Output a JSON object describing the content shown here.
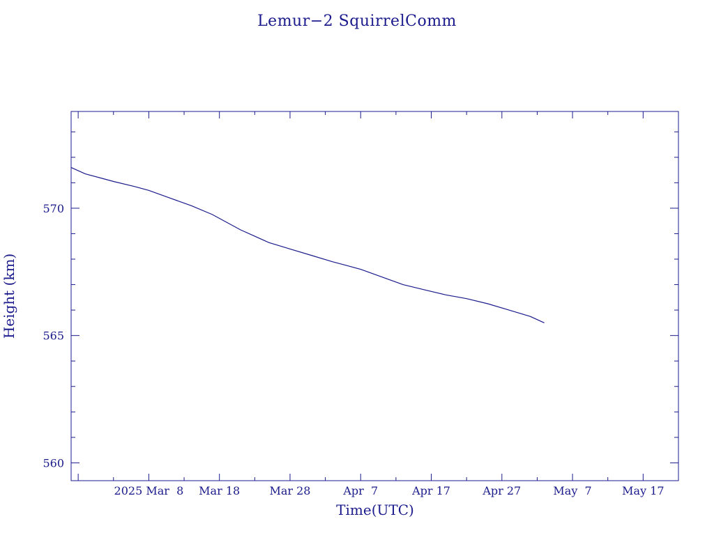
{
  "colors": {
    "ink": "#1a1a8c",
    "background": "#ffffff"
  },
  "chart_data": {
    "type": "line",
    "title": "Lemur−2 SquirrelComm",
    "xlabel": "Time(UTC)",
    "ylabel": "Height (km)",
    "x_axis_kind": "date",
    "xlim": [
      "2025-02-25",
      "2025-05-22"
    ],
    "ylim": [
      559.3,
      573.8
    ],
    "x_ticks": [
      {
        "value": "2025-02-26",
        "label": ""
      },
      {
        "value": "2025-03-08",
        "label": "2025 Mar  8"
      },
      {
        "value": "2025-03-18",
        "label": "Mar 18"
      },
      {
        "value": "2025-03-28",
        "label": "Mar 28"
      },
      {
        "value": "2025-04-07",
        "label": "Apr  7"
      },
      {
        "value": "2025-04-17",
        "label": "Apr 17"
      },
      {
        "value": "2025-04-27",
        "label": "Apr 27"
      },
      {
        "value": "2025-05-07",
        "label": "May  7"
      },
      {
        "value": "2025-05-17",
        "label": "May 17"
      }
    ],
    "y_ticks": [
      560,
      565,
      570
    ],
    "y_tick_labels": [
      "560",
      "565",
      "570"
    ],
    "y_minor_step": 1,
    "grid": false,
    "series": [
      {
        "x": [
          "2025-02-25",
          "2025-02-27",
          "2025-03-01",
          "2025-03-03",
          "2025-03-06",
          "2025-03-08",
          "2025-03-11",
          "2025-03-14",
          "2025-03-17",
          "2025-03-19",
          "2025-03-21",
          "2025-03-23",
          "2025-03-25",
          "2025-03-28",
          "2025-03-31",
          "2025-04-03",
          "2025-04-05",
          "2025-04-07",
          "2025-04-10",
          "2025-04-13",
          "2025-04-16",
          "2025-04-19",
          "2025-04-22",
          "2025-04-25",
          "2025-04-28",
          "2025-05-01",
          "2025-05-03"
        ],
        "y": [
          571.6,
          571.35,
          571.2,
          571.05,
          570.85,
          570.7,
          570.4,
          570.1,
          569.75,
          569.45,
          569.15,
          568.9,
          568.65,
          568.4,
          568.15,
          567.9,
          567.75,
          567.6,
          567.3,
          567.0,
          566.8,
          566.6,
          566.45,
          566.25,
          566.0,
          565.75,
          565.5
        ]
      }
    ]
  }
}
